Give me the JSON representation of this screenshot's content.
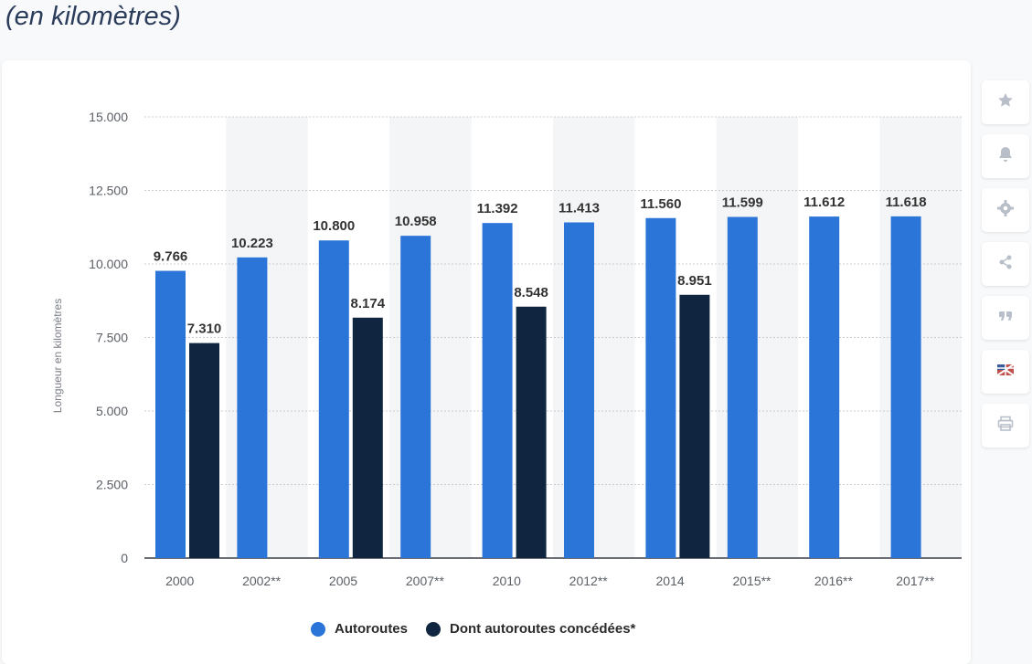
{
  "heading": "(en kilomètres)",
  "colors": {
    "series_1": "#2b75d9",
    "series_2": "#102640",
    "band": "#f4f5f7",
    "grid": "#c9ccd1",
    "axis_text": "#5a5f66",
    "label_text": "#333333"
  },
  "toolbar": {
    "buttons": [
      {
        "name": "star-icon"
      },
      {
        "name": "bell-icon"
      },
      {
        "name": "gear-icon"
      },
      {
        "name": "share-icon"
      },
      {
        "name": "quote-icon"
      },
      {
        "name": "flag-icon"
      },
      {
        "name": "print-icon"
      }
    ]
  },
  "legend": {
    "items": [
      "Autoroutes",
      "Dont autoroutes concédées*"
    ]
  },
  "chart_data": {
    "type": "bar",
    "ylabel": "Longueur en kilomètres",
    "xlabel": "",
    "ylim": [
      0,
      15000
    ],
    "yticks": [
      0,
      2500,
      5000,
      7500,
      10000,
      12500,
      15000
    ],
    "ytick_labels": [
      "0",
      "2.500",
      "5.000",
      "7.500",
      "10.000",
      "12.500",
      "15.000"
    ],
    "categories": [
      "2000",
      "2002**",
      "2005",
      "2007**",
      "2010",
      "2012**",
      "2014",
      "2015**",
      "2016**",
      "2017**"
    ],
    "series": [
      {
        "name": "Autoroutes",
        "values": [
          9766,
          10223,
          10800,
          10958,
          11392,
          11413,
          11560,
          11599,
          11612,
          11618
        ],
        "labels": [
          "9.766",
          "10.223",
          "10.800",
          "10.958",
          "11.392",
          "11.413",
          "11.560",
          "11.599",
          "11.612",
          "11.618"
        ]
      },
      {
        "name": "Dont autoroutes concédées*",
        "values": [
          7310,
          null,
          8174,
          null,
          8548,
          null,
          8951,
          null,
          null,
          null
        ],
        "labels": [
          "7.310",
          null,
          "8.174",
          null,
          "8.548",
          null,
          "8.951",
          null,
          null,
          null
        ]
      }
    ],
    "grid": true,
    "legend_position": "bottom"
  }
}
